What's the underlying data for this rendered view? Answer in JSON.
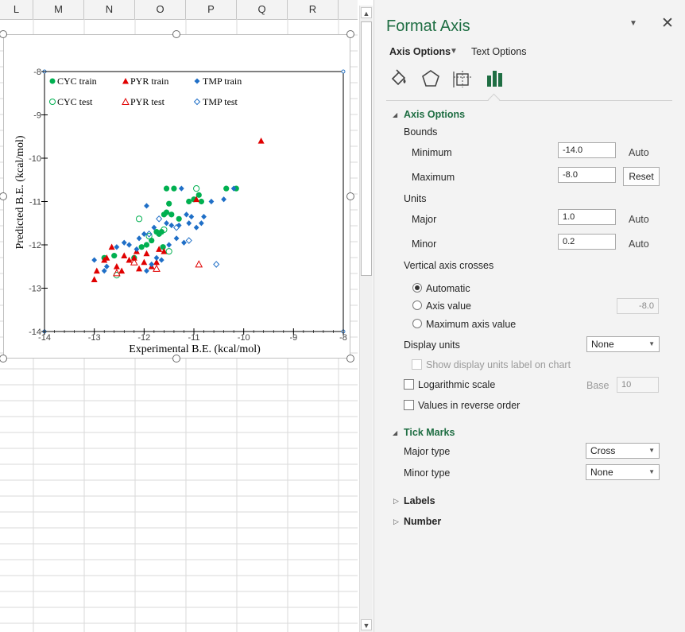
{
  "columns": [
    "L",
    "M",
    "N",
    "O",
    "P",
    "Q",
    "R"
  ],
  "chart": {
    "ylabel": "Predicted B.E. (kcal/mol)",
    "xlabel": "Experimental B.E. (kcal/mol)",
    "legend": {
      "cyc_train": "CYC train",
      "pyr_train": "PYR train",
      "tmp_train": "TMP train",
      "cyc_test": "CYC test",
      "pyr_test": "PYR test",
      "tmp_test": "TMP test"
    },
    "xticks": [
      "-14",
      "-13",
      "-12",
      "-11",
      "-10",
      "-9",
      "-8"
    ],
    "yticks": [
      "-8",
      "-9",
      "-10",
      "-11",
      "-12",
      "-13",
      "-14"
    ]
  },
  "chart_data": {
    "type": "scatter",
    "xlabel": "Experimental B.E. (kcal/mol)",
    "ylabel": "Predicted B.E. (kcal/mol)",
    "xlim": [
      -14,
      -8
    ],
    "ylim": [
      -14,
      -8
    ],
    "legend_position": "top",
    "grid": false,
    "colors": {
      "CYC": "#00b050",
      "PYR": "#e00000",
      "TMP": "#1f6fc7"
    },
    "series": [
      {
        "name": "CYC train",
        "marker": "circle-filled",
        "x": [
          -12.8,
          -12.6,
          -12.2,
          -12.05,
          -11.95,
          -11.85,
          -11.75,
          -11.7,
          -11.65,
          -11.62,
          -11.6,
          -11.55,
          -11.55,
          -11.5,
          -11.45,
          -11.4,
          -11.3,
          -11.1,
          -11.0,
          -10.9,
          -10.85,
          -10.35,
          -10.15
        ],
        "y": [
          -12.3,
          -12.25,
          -12.3,
          -12.05,
          -12.0,
          -11.9,
          -11.7,
          -11.75,
          -11.7,
          -12.05,
          -11.3,
          -11.25,
          -10.7,
          -11.05,
          -11.3,
          -10.7,
          -11.4,
          -11.0,
          -10.95,
          -10.85,
          -11.0,
          -10.7,
          -10.7
        ]
      },
      {
        "name": "PYR train",
        "marker": "triangle-filled",
        "x": [
          -13.0,
          -12.95,
          -12.8,
          -12.75,
          -12.65,
          -12.55,
          -12.45,
          -12.4,
          -12.3,
          -12.2,
          -12.15,
          -12.1,
          -12.0,
          -11.95,
          -11.85,
          -11.75,
          -11.7,
          -11.6,
          -10.95,
          -9.65
        ],
        "y": [
          -12.8,
          -12.6,
          -12.35,
          -12.3,
          -12.05,
          -12.5,
          -12.6,
          -12.25,
          -12.35,
          -12.3,
          -12.15,
          -12.55,
          -12.4,
          -12.2,
          -12.5,
          -12.4,
          -12.1,
          -12.15,
          -10.95,
          -9.6
        ]
      },
      {
        "name": "TMP train",
        "marker": "diamond-filled",
        "x": [
          -13.0,
          -12.8,
          -12.75,
          -12.55,
          -12.4,
          -12.3,
          -12.15,
          -12.1,
          -12.0,
          -11.95,
          -11.95,
          -11.85,
          -11.8,
          -11.75,
          -11.65,
          -11.55,
          -11.5,
          -11.45,
          -11.35,
          -11.3,
          -11.25,
          -11.2,
          -11.15,
          -11.1,
          -11.05,
          -10.95,
          -10.85,
          -10.8,
          -10.65,
          -10.4,
          -10.2
        ],
        "y": [
          -12.35,
          -12.6,
          -12.5,
          -12.05,
          -11.95,
          -12.0,
          -12.1,
          -11.85,
          -11.75,
          -11.1,
          -12.6,
          -12.45,
          -11.6,
          -12.3,
          -12.35,
          -11.5,
          -12.0,
          -11.55,
          -11.85,
          -11.55,
          -10.7,
          -11.95,
          -11.3,
          -11.5,
          -11.35,
          -11.6,
          -11.5,
          -11.35,
          -11.0,
          -10.95,
          -10.7
        ]
      },
      {
        "name": "CYC test",
        "marker": "circle-open",
        "x": [
          -12.55,
          -12.1,
          -11.9,
          -11.6,
          -11.5,
          -10.95
        ],
        "y": [
          -12.7,
          -11.4,
          -11.8,
          -11.65,
          -12.15,
          -10.7
        ]
      },
      {
        "name": "PYR test",
        "marker": "triangle-open",
        "x": [
          -12.55,
          -12.2,
          -11.75,
          -10.9
        ],
        "y": [
          -12.65,
          -12.4,
          -12.55,
          -12.45
        ]
      },
      {
        "name": "TMP test",
        "marker": "diamond-open",
        "x": [
          -11.9,
          -11.7,
          -11.35,
          -11.1,
          -10.55
        ],
        "y": [
          -11.75,
          -11.4,
          -11.6,
          -11.9,
          -12.45
        ]
      }
    ]
  },
  "pane": {
    "title": "Format Axis",
    "tabs": {
      "axis_options": "Axis Options",
      "text_options": "Text Options"
    },
    "icons": [
      "fill-line-icon",
      "effects-icon",
      "size-properties-icon",
      "axis-options-icon"
    ],
    "section_axis_options": "Axis Options",
    "bounds_label": "Bounds",
    "minimum_label": "Minimum",
    "minimum_value": "-14.0",
    "minimum_state": "Auto",
    "maximum_label": "Maximum",
    "maximum_value": "-8.0",
    "maximum_button": "Reset",
    "units_label": "Units",
    "major_label": "Major",
    "major_value": "1.0",
    "major_state": "Auto",
    "minor_label": "Minor",
    "minor_value": "0.2",
    "minor_state": "Auto",
    "crosses_label": "Vertical axis crosses",
    "radio_automatic": "Automatic",
    "radio_axis_value": "Axis value",
    "axis_value_field": "-8.0",
    "radio_max_axis": "Maximum axis value",
    "display_units_label": "Display units",
    "display_units_value": "None",
    "show_units_label": "Show display units label on chart",
    "log_scale_label": "Logarithmic scale",
    "base_label": "Base",
    "base_value": "10",
    "reverse_label": "Values in reverse order",
    "section_tick_marks": "Tick Marks",
    "major_type_label": "Major type",
    "major_type_value": "Cross",
    "minor_type_label": "Minor type",
    "minor_type_value": "None",
    "section_labels": "Labels",
    "section_number": "Number"
  }
}
